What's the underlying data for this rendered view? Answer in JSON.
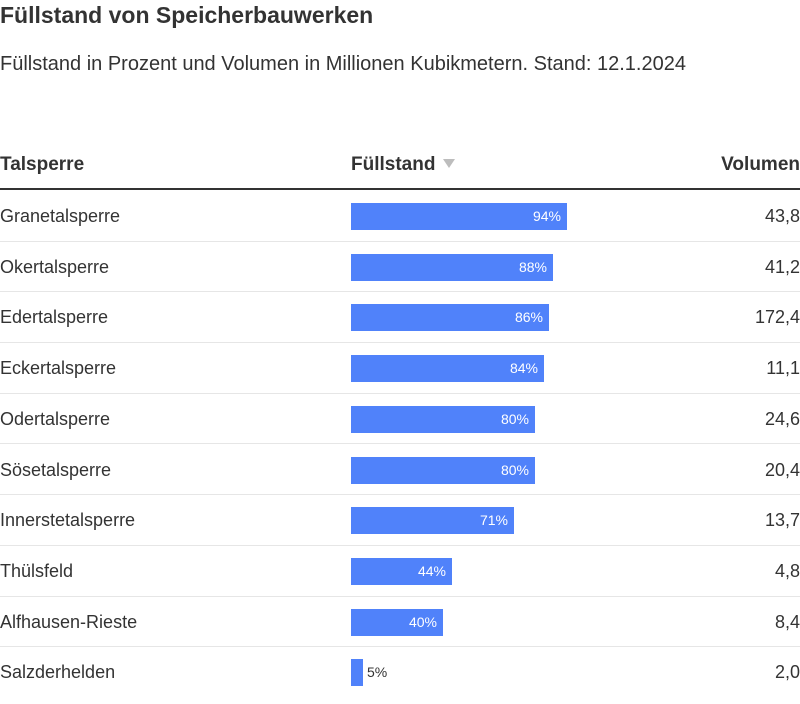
{
  "title": "Füllstand von Speicherbauwerken",
  "subtitle": "Füllstand in Prozent und Volumen in Millionen Kubikmetern. Stand: 12.1.2024",
  "columns": {
    "name": "Talsperre",
    "fill": "Füllstand",
    "volume": "Volumen"
  },
  "colors": {
    "bar": "#5082fa",
    "text": "#333333"
  },
  "chart_data": {
    "type": "table",
    "title": "Füllstand von Speicherbauwerken",
    "subtitle": "Füllstand in Prozent und Volumen in Millionen Kubikmetern. Stand: 12.1.2024",
    "columns": [
      "Talsperre",
      "Füllstand",
      "Volumen"
    ],
    "sort": {
      "column": "Füllstand",
      "order": "descending"
    },
    "rows": [
      {
        "name": "Granetalsperre",
        "fill": 94,
        "fill_label": "94%",
        "volume": "43,8"
      },
      {
        "name": "Okertalsperre",
        "fill": 88,
        "fill_label": "88%",
        "volume": "41,2"
      },
      {
        "name": "Edertalsperre",
        "fill": 86,
        "fill_label": "86%",
        "volume": "172,4"
      },
      {
        "name": "Eckertalsperre",
        "fill": 84,
        "fill_label": "84%",
        "volume": "11,1"
      },
      {
        "name": "Odertalsperre",
        "fill": 80,
        "fill_label": "80%",
        "volume": "24,6"
      },
      {
        "name": "Sösetalsperre",
        "fill": 80,
        "fill_label": "80%",
        "volume": "20,4"
      },
      {
        "name": "Innerstetalsperre",
        "fill": 71,
        "fill_label": "71%",
        "volume": "13,7"
      },
      {
        "name": "Thülsfeld",
        "fill": 44,
        "fill_label": "44%",
        "volume": "4,8"
      },
      {
        "name": "Alfhausen-Rieste",
        "fill": 40,
        "fill_label": "40%",
        "volume": "8,4"
      },
      {
        "name": "Salzderhelden",
        "fill": 5,
        "fill_label": "5%",
        "volume": "2,0"
      }
    ]
  }
}
